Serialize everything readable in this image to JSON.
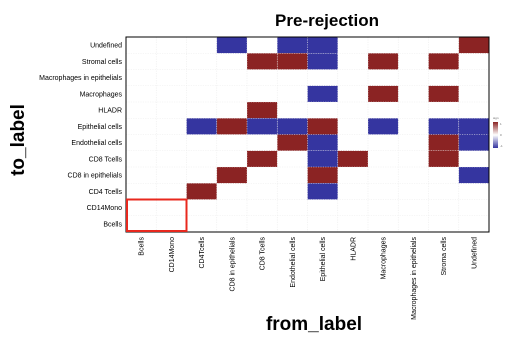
{
  "chart_data": {
    "type": "heatmap",
    "title": "Pre-rejection",
    "xlabel": "from_label",
    "ylabel": "to_label",
    "x_categories": [
      "Bcells",
      "CD14Mono",
      "CD4Tcells",
      "CD8 in epithelials",
      "CD8 Tcells",
      "Endothelial cells",
      "Epithelial cells",
      "HLADR",
      "Macrophages",
      "Macrophages in epithelials",
      "Stroma cells",
      "Undefined"
    ],
    "y_categories": [
      "Undefined",
      "Stromal cells",
      "Macrophages in epithelials",
      "Macrophages",
      "HLADR",
      "Epithelial cells",
      "Endothelial cells",
      "CD8 Tcells",
      "CD8 in epithelials",
      "CD4 Tcells",
      "CD14Mono",
      "Bcells"
    ],
    "values": [
      [
        null,
        null,
        null,
        -1,
        null,
        -1,
        -1,
        null,
        null,
        null,
        null,
        1
      ],
      [
        null,
        null,
        null,
        null,
        1,
        1,
        -1,
        null,
        1,
        null,
        1,
        null
      ],
      [
        null,
        null,
        null,
        null,
        null,
        null,
        null,
        null,
        null,
        null,
        null,
        null
      ],
      [
        null,
        null,
        null,
        null,
        null,
        null,
        -1,
        null,
        1,
        null,
        1,
        null
      ],
      [
        null,
        null,
        null,
        null,
        1,
        null,
        null,
        null,
        null,
        null,
        null,
        null
      ],
      [
        null,
        null,
        -1,
        1,
        -1,
        -1,
        1,
        null,
        -1,
        null,
        -1,
        -1
      ],
      [
        null,
        null,
        null,
        null,
        null,
        1,
        -1,
        null,
        null,
        null,
        1,
        -1
      ],
      [
        null,
        null,
        null,
        null,
        1,
        null,
        -1,
        1,
        null,
        null,
        1,
        null
      ],
      [
        null,
        null,
        null,
        1,
        null,
        null,
        1,
        null,
        null,
        null,
        null,
        -1
      ],
      [
        null,
        null,
        1,
        null,
        null,
        null,
        -1,
        null,
        null,
        null,
        null,
        null
      ],
      [
        null,
        null,
        null,
        null,
        null,
        null,
        null,
        null,
        null,
        null,
        null,
        null
      ],
      [
        null,
        null,
        null,
        null,
        null,
        null,
        null,
        null,
        null,
        null,
        null,
        null
      ]
    ],
    "colors": {
      "positive": "#8b2323",
      "negative": "#3535a0",
      "empty": "#ffffff"
    },
    "highlight": {
      "from": [
        "Bcells",
        "CD14Mono"
      ],
      "to": [
        "CD14Mono",
        "Bcells"
      ],
      "color": "#e8281e"
    },
    "legend": {
      "title": "sign",
      "ticks": [
        "1",
        "0",
        "-1"
      ],
      "placement": "right"
    },
    "grid": true
  }
}
